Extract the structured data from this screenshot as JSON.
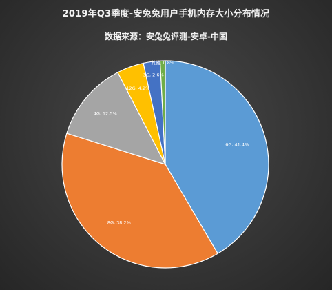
{
  "title": "2019年Q3季度-安兔兔用户手机内存大小分布情况",
  "subtitle": "数据来源：安兔兔评测-安卓-中国",
  "chart_data": {
    "type": "pie",
    "title": "2019年Q3季度-安兔兔用户手机内存大小分布情况",
    "subtitle": "数据来源：安兔兔评测-安卓-中国",
    "start_angle_deg": 0,
    "direction": "clockwise",
    "slices": [
      {
        "label": "6G",
        "value": 41.4,
        "text": "6G, 41.4%",
        "color": "#5b9bd5"
      },
      {
        "label": "8G",
        "value": 38.2,
        "text": "8G, 38.2%",
        "color": "#ed7d31"
      },
      {
        "label": "4G",
        "value": 12.5,
        "text": "4G, 12.5%",
        "color": "#a5a5a5"
      },
      {
        "label": "12G",
        "value": 4.2,
        "text": "12G, 4.2%",
        "color": "#ffc000"
      },
      {
        "label": "3G",
        "value": 2.6,
        "text": "3G, 2.6%",
        "color": "#4472c4"
      },
      {
        "label": "其他",
        "value": 0.8,
        "text": "其他, 0.8%",
        "color": "#70ad47"
      }
    ]
  }
}
